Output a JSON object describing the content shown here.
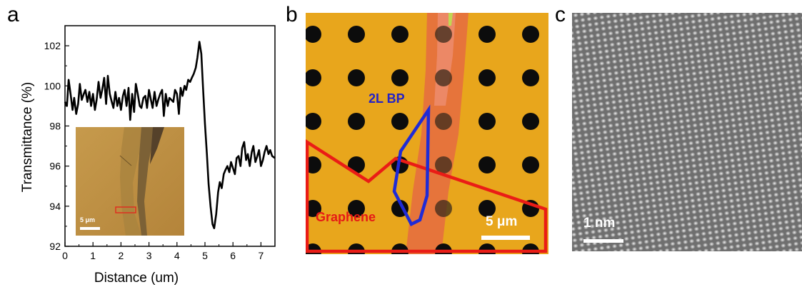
{
  "panels": {
    "a": "a",
    "b": "b",
    "c": "c"
  },
  "chart_data": {
    "type": "line",
    "title": "",
    "xlabel": "Distance (um)",
    "ylabel": "Transmittance (%)",
    "xlim": [
      0,
      7.5
    ],
    "ylim": [
      92,
      103
    ],
    "xticks": [
      0,
      1,
      2,
      3,
      4,
      5,
      6,
      7
    ],
    "yticks": [
      92,
      94,
      96,
      98,
      100,
      102
    ],
    "series": [
      {
        "color": "#000000",
        "x": [
          0.0,
          0.07,
          0.13,
          0.2,
          0.27,
          0.33,
          0.4,
          0.47,
          0.53,
          0.6,
          0.67,
          0.73,
          0.8,
          0.87,
          0.93,
          1.0,
          1.07,
          1.13,
          1.2,
          1.27,
          1.33,
          1.4,
          1.47,
          1.53,
          1.6,
          1.67,
          1.73,
          1.8,
          1.87,
          1.93,
          2.0,
          2.07,
          2.13,
          2.2,
          2.27,
          2.33,
          2.4,
          2.47,
          2.53,
          2.6,
          2.67,
          2.73,
          2.8,
          2.87,
          2.93,
          3.0,
          3.07,
          3.13,
          3.2,
          3.27,
          3.33,
          3.4,
          3.47,
          3.53,
          3.6,
          3.67,
          3.73,
          3.8,
          3.87,
          3.93,
          4.0,
          4.07,
          4.13,
          4.2,
          4.27,
          4.33,
          4.4,
          4.47,
          4.53,
          4.6,
          4.67,
          4.73,
          4.8,
          4.87,
          4.93,
          5.0,
          5.07,
          5.13,
          5.2,
          5.27,
          5.33,
          5.4,
          5.47,
          5.53,
          5.6,
          5.67,
          5.73,
          5.8,
          5.87,
          5.93,
          6.0,
          6.07,
          6.13,
          6.2,
          6.27,
          6.33,
          6.4,
          6.47,
          6.53,
          6.6,
          6.67,
          6.73,
          6.8,
          6.87,
          6.93,
          7.0,
          7.07,
          7.13,
          7.2,
          7.27,
          7.33,
          7.4,
          7.5
        ],
        "y": [
          99.2,
          99.0,
          100.3,
          99.6,
          98.8,
          99.4,
          98.6,
          99.1,
          100.1,
          99.3,
          99.6,
          99.8,
          99.2,
          99.7,
          99.0,
          99.6,
          98.8,
          99.3,
          100.2,
          99.4,
          99.8,
          100.4,
          99.1,
          100.5,
          99.6,
          99.2,
          98.9,
          99.7,
          99.0,
          99.4,
          98.8,
          99.5,
          99.8,
          99.0,
          99.9,
          98.3,
          99.6,
          98.7,
          100.1,
          99.6,
          99.0,
          98.9,
          99.4,
          99.5,
          98.9,
          99.8,
          99.3,
          98.9,
          99.7,
          99.0,
          99.3,
          99.6,
          99.8,
          98.5,
          99.6,
          99.0,
          99.4,
          99.3,
          99.2,
          99.8,
          99.6,
          98.6,
          99.9,
          99.5,
          100.0,
          99.8,
          100.3,
          100.2,
          100.4,
          100.6,
          100.9,
          101.4,
          102.2,
          101.6,
          99.9,
          98.1,
          96.6,
          95.1,
          94.0,
          93.1,
          92.9,
          93.6,
          94.7,
          95.2,
          94.9,
          95.6,
          95.8,
          96.0,
          95.7,
          96.2,
          95.9,
          95.6,
          96.4,
          96.5,
          96.0,
          96.9,
          97.2,
          96.3,
          96.6,
          96.0,
          96.7,
          97.0,
          96.2,
          96.5,
          96.8,
          96.0,
          96.3,
          96.7,
          97.0,
          96.6,
          96.8,
          96.5,
          96.4
        ]
      }
    ]
  },
  "scalebars": {
    "inset": "5 μm",
    "b": "5 μm",
    "c": "1 nm"
  },
  "labels": {
    "bp": "2L BP",
    "graphene": "Graphene"
  },
  "colors": {
    "substrate": "#e8a61c",
    "flake": "#e56f3f",
    "outline_bp": "#1f2bd6",
    "outline_graphene": "#ea1c16",
    "bp_label": "#2322c7",
    "graphene_label": "#e61a16"
  }
}
